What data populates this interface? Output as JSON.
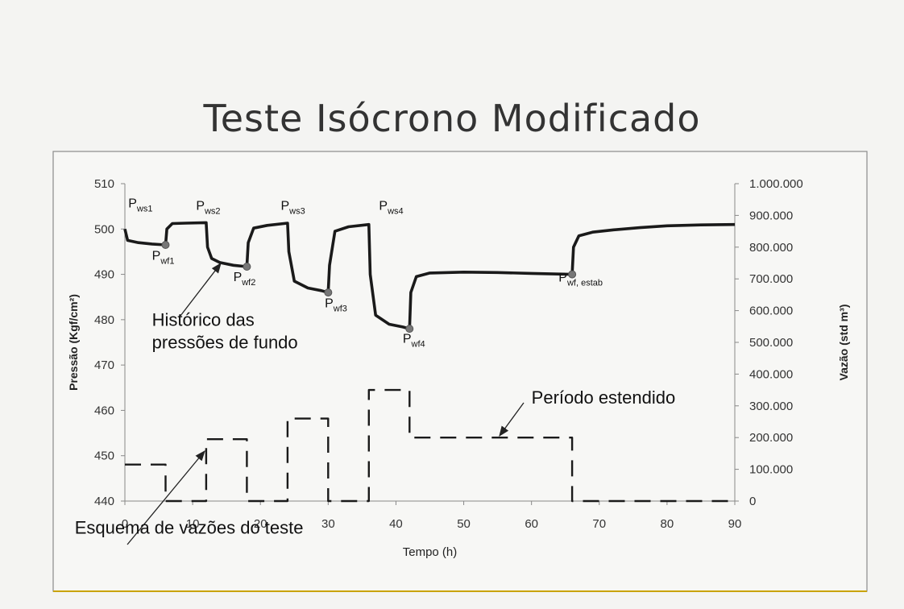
{
  "slide": {
    "title": "Teste Isócrono Modificado"
  },
  "chart_data": {
    "type": "line",
    "xlabel": "Tempo (h)",
    "ylabel": "Pressão (Kgf/cm²)",
    "y2label": "Vazão (std m³)",
    "xlim": [
      0,
      90
    ],
    "ylim": [
      440,
      510
    ],
    "y2lim": [
      0,
      1000000
    ],
    "x_ticks": [
      "0",
      "10",
      "20",
      "30",
      "40",
      "50",
      "60",
      "70",
      "80",
      "90"
    ],
    "y_ticks": [
      "440",
      "450",
      "460",
      "470",
      "480",
      "490",
      "500",
      "510"
    ],
    "y2_ticks": [
      "0",
      "100.000",
      "200.000",
      "300.000",
      "400.000",
      "500.000",
      "600.000",
      "700.000",
      "800.000",
      "900.000",
      "1.000.000"
    ],
    "grid": false,
    "series": [
      {
        "name": "Histórico das pressões de fundo",
        "axis": "left",
        "style": "solid",
        "points": [
          [
            0,
            500
          ],
          [
            0.4,
            497.5
          ],
          [
            2,
            497
          ],
          [
            4,
            496.7
          ],
          [
            6,
            496.5
          ],
          [
            6.2,
            500
          ],
          [
            7,
            501.2
          ],
          [
            9,
            501.3
          ],
          [
            12,
            501.4
          ],
          [
            12.2,
            496
          ],
          [
            12.8,
            493.5
          ],
          [
            14,
            492.6
          ],
          [
            16,
            492
          ],
          [
            18,
            491.7
          ],
          [
            18.2,
            497
          ],
          [
            19,
            500.2
          ],
          [
            21,
            500.8
          ],
          [
            24,
            501.3
          ],
          [
            24.2,
            495
          ],
          [
            25,
            488.5
          ],
          [
            27,
            487
          ],
          [
            29,
            486.4
          ],
          [
            30,
            486
          ],
          [
            30.2,
            492
          ],
          [
            31,
            499.5
          ],
          [
            33,
            500.5
          ],
          [
            36,
            501
          ],
          [
            36.2,
            490
          ],
          [
            37,
            481
          ],
          [
            39,
            479
          ],
          [
            41,
            478.4
          ],
          [
            42,
            478
          ],
          [
            42.2,
            486
          ],
          [
            43,
            489.5
          ],
          [
            45,
            490.3
          ],
          [
            50,
            490.5
          ],
          [
            55,
            490.4
          ],
          [
            60,
            490.2
          ],
          [
            66,
            490
          ],
          [
            66.2,
            496
          ],
          [
            67,
            498.5
          ],
          [
            69,
            499.3
          ],
          [
            72,
            499.8
          ],
          [
            76,
            500.3
          ],
          [
            80,
            500.7
          ],
          [
            85,
            500.9
          ],
          [
            90,
            501
          ]
        ]
      },
      {
        "name": "Esquema de vazões do teste",
        "axis": "right",
        "style": "dashed",
        "points": [
          [
            0,
            115000
          ],
          [
            6,
            115000
          ],
          [
            6,
            0
          ],
          [
            12,
            0
          ],
          [
            12,
            195000
          ],
          [
            18,
            195000
          ],
          [
            18,
            0
          ],
          [
            24,
            0
          ],
          [
            24,
            260000
          ],
          [
            30,
            260000
          ],
          [
            30,
            0
          ],
          [
            36,
            0
          ],
          [
            36,
            350000
          ],
          [
            42,
            350000
          ],
          [
            42,
            200000
          ],
          [
            66,
            200000
          ],
          [
            66,
            0
          ],
          [
            90,
            0
          ]
        ]
      }
    ],
    "markers": [
      {
        "x": 6,
        "y": 496.5
      },
      {
        "x": 18,
        "y": 491.7
      },
      {
        "x": 30,
        "y": 486
      },
      {
        "x": 42,
        "y": 478
      },
      {
        "x": 66,
        "y": 490
      }
    ],
    "point_labels": [
      {
        "main": "P",
        "sub": "ws1",
        "x": 0.5,
        "y": 504.8
      },
      {
        "main": "P",
        "sub": "wf1",
        "x": 4,
        "y": 493.2
      },
      {
        "main": "P",
        "sub": "ws2",
        "x": 10.5,
        "y": 504.2
      },
      {
        "main": "P",
        "sub": "wf2",
        "x": 16,
        "y": 488.5
      },
      {
        "main": "P",
        "sub": "ws3",
        "x": 23,
        "y": 504.2
      },
      {
        "main": "P",
        "sub": "wf3",
        "x": 29.5,
        "y": 482.7
      },
      {
        "main": "P",
        "sub": "ws4",
        "x": 37.5,
        "y": 504.2
      },
      {
        "main": "P",
        "sub": "wf4",
        "x": 41,
        "y": 474.9
      },
      {
        "main": "P",
        "sub": "wf, estab",
        "x": 64,
        "y": 488.4
      }
    ],
    "annotations": [
      {
        "lines": [
          "Histórico das",
          "pressões de fundo"
        ],
        "x": 4,
        "y": 478.6
      },
      {
        "lines": [
          "Período estendido"
        ],
        "x": 60,
        "y": 461.5
      },
      {
        "lines": [
          "Esquema de vazões do teste"
        ],
        "x": -7.4,
        "y": 432.8
      }
    ]
  }
}
